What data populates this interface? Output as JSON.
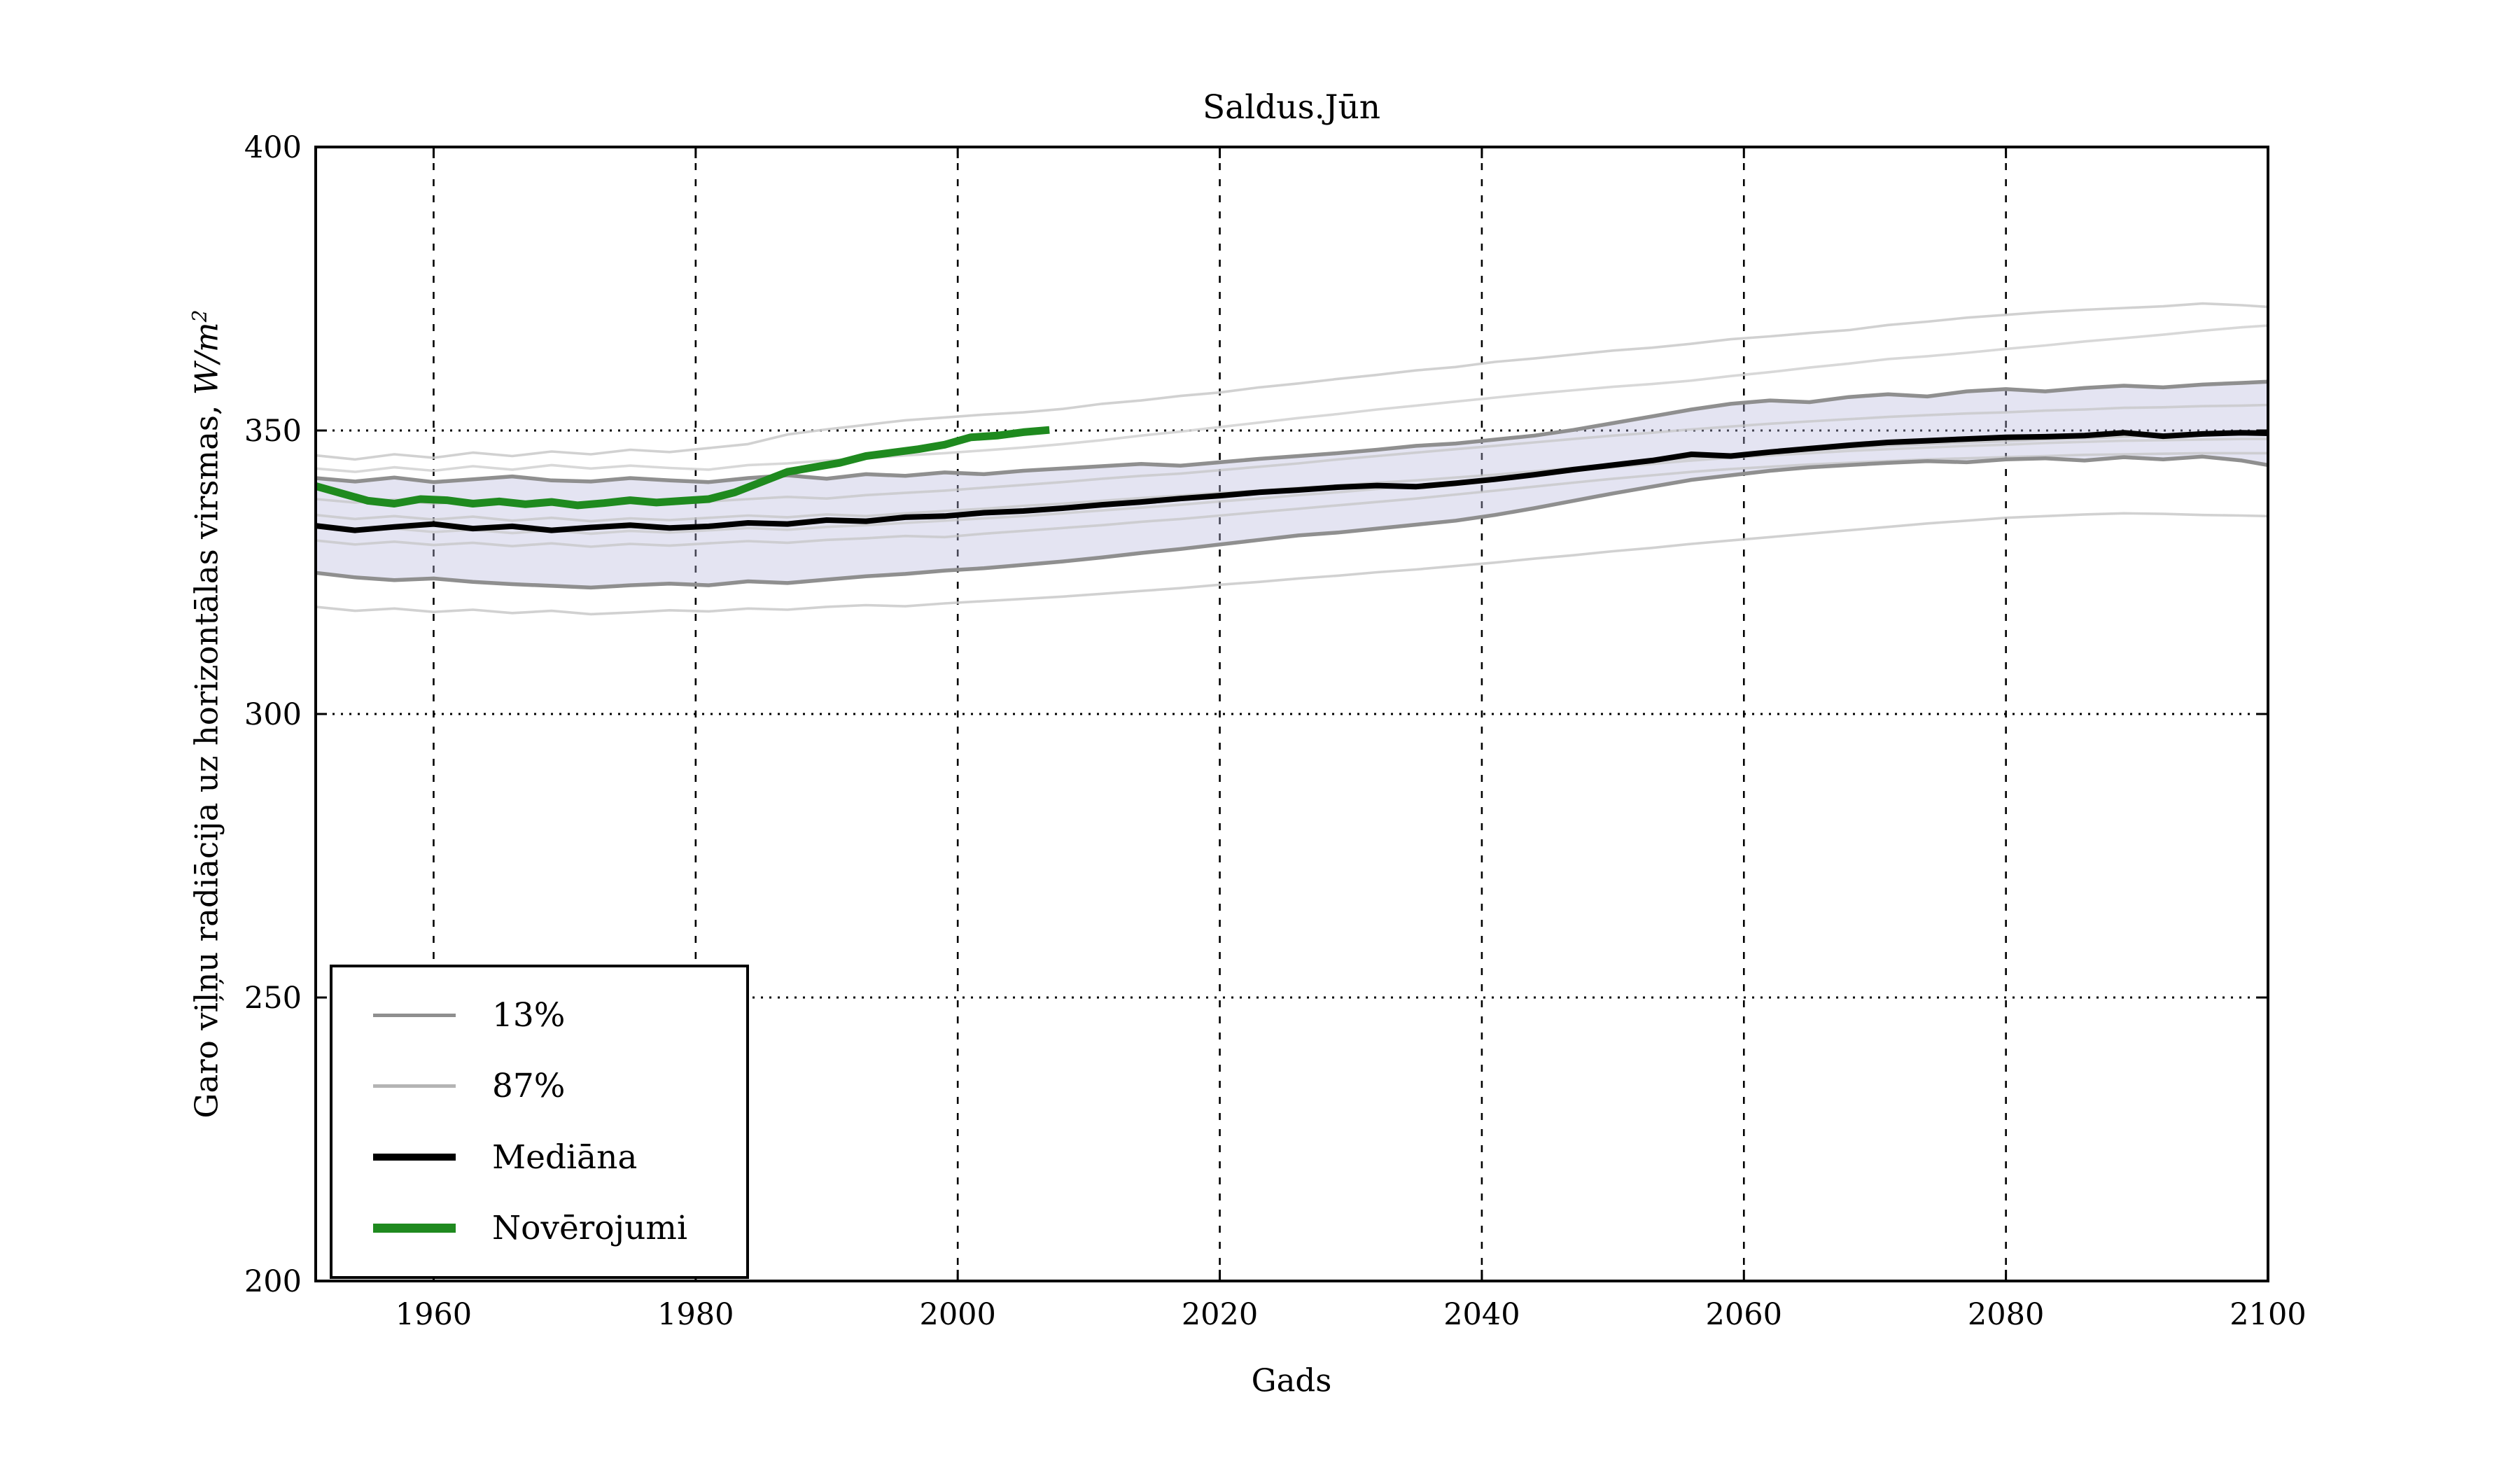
{
  "chart_data": {
    "type": "line",
    "title": "Saldus.Jūn",
    "xlabel": "Gads",
    "ylabel": "Garo viļņu radiācija uz horizontālas virsmas, W/m²",
    "ylabel_parts": {
      "prefix": "Garo viļņu radiācija uz horizontālas virsmas, ",
      "unit": "W/m",
      "exponent": "2"
    },
    "xlim": [
      1951,
      2100
    ],
    "ylim": [
      200,
      400
    ],
    "x_ticks": [
      1960,
      1980,
      2000,
      2020,
      2040,
      2060,
      2080,
      2100
    ],
    "y_ticks": [
      200,
      250,
      300,
      350,
      400
    ],
    "grid": "dotted",
    "grid_color": "#000000",
    "background": "#ffffff",
    "band_fill": "#b9b9de",
    "band_fill_opacity": 0.38,
    "legend_position": "lower left",
    "legend": [
      {
        "label": "13%",
        "color": "#8f8f8f",
        "width": 5
      },
      {
        "label": "87%",
        "color": "#b4b4b4",
        "width": 5
      },
      {
        "label": "Mediāna",
        "color": "#000000",
        "width": 10
      },
      {
        "label": "Novērojumi",
        "color": "#1f8a1f",
        "width": 13
      }
    ],
    "x_years": [
      1951,
      1954,
      1957,
      1960,
      1963,
      1966,
      1969,
      1972,
      1975,
      1978,
      1981,
      1984,
      1987,
      1990,
      1993,
      1996,
      1999,
      2002,
      2005,
      2008,
      2011,
      2014,
      2017,
      2020,
      2023,
      2026,
      2029,
      2032,
      2035,
      2038,
      2041,
      2044,
      2047,
      2050,
      2053,
      2056,
      2059,
      2062,
      2065,
      2068,
      2071,
      2074,
      2077,
      2080,
      2083,
      2086,
      2089,
      2092,
      2095,
      2098,
      2100
    ],
    "series": [
      {
        "name": "ensemble-top-1",
        "role": "ensemble",
        "color": "#cccccc",
        "width": 3.6,
        "opacity": 0.9,
        "y": [
          345.6,
          344.9,
          345.8,
          345.2,
          346.1,
          345.5,
          346.3,
          345.8,
          346.6,
          346.2,
          346.9,
          347.6,
          349.3,
          350.2,
          351.0,
          351.8,
          352.3,
          352.8,
          353.2,
          353.8,
          354.7,
          355.3,
          356.1,
          356.7,
          357.6,
          358.3,
          359.1,
          359.8,
          360.6,
          361.2,
          362.1,
          362.7,
          363.4,
          364.1,
          364.6,
          365.3,
          366.1,
          366.6,
          367.2,
          367.7,
          368.6,
          369.2,
          369.9,
          370.4,
          370.9,
          371.3,
          371.6,
          371.9,
          372.4,
          372.1,
          371.8
        ]
      },
      {
        "name": "ensemble-top-2",
        "role": "ensemble",
        "color": "#d4d4d4",
        "width": 3.6,
        "opacity": 0.9,
        "y": [
          343.3,
          342.7,
          343.5,
          342.9,
          343.7,
          343.1,
          343.9,
          343.3,
          343.8,
          343.4,
          343.1,
          343.9,
          344.2,
          344.7,
          345.1,
          345.6,
          346.0,
          346.5,
          347.0,
          347.6,
          348.3,
          349.1,
          349.8,
          350.6,
          351.4,
          352.2,
          352.9,
          353.7,
          354.4,
          355.1,
          355.8,
          356.5,
          357.1,
          357.7,
          358.2,
          358.8,
          359.6,
          360.3,
          361.1,
          361.8,
          362.6,
          363.1,
          363.7,
          364.4,
          365.0,
          365.7,
          366.3,
          366.9,
          367.6,
          368.2,
          368.5
        ]
      },
      {
        "name": "ensemble-mid-1",
        "role": "ensemble",
        "color": "#c6c6c6",
        "width": 3.6,
        "opacity": 0.75,
        "y": [
          337.9,
          337.3,
          337.8,
          337.1,
          337.6,
          336.9,
          337.4,
          336.8,
          337.3,
          337.0,
          337.5,
          337.9,
          338.3,
          338.0,
          338.6,
          339.0,
          339.4,
          339.9,
          340.4,
          340.9,
          341.5,
          342.0,
          342.4,
          343.0,
          343.6,
          344.2,
          344.9,
          345.5,
          346.1,
          346.7,
          347.3,
          347.9,
          348.5,
          349.1,
          349.6,
          350.2,
          350.7,
          351.2,
          351.6,
          352.0,
          352.4,
          352.7,
          353.0,
          353.2,
          353.5,
          353.7,
          354.0,
          354.1,
          354.3,
          354.4,
          354.5
        ]
      },
      {
        "name": "ensemble-mid-2",
        "role": "ensemble",
        "color": "#c6c6c6",
        "width": 3.6,
        "opacity": 0.75,
        "y": [
          335.1,
          334.4,
          334.9,
          334.3,
          334.8,
          334.1,
          334.6,
          334.0,
          334.5,
          334.2,
          334.6,
          335.0,
          334.7,
          335.2,
          334.9,
          335.4,
          335.8,
          336.2,
          336.7,
          337.1,
          337.6,
          338.1,
          338.5,
          339.0,
          339.4,
          339.9,
          340.3,
          340.8,
          341.2,
          341.7,
          342.2,
          342.8,
          343.4,
          344.0,
          344.6,
          345.2,
          345.7,
          346.1,
          346.5,
          346.9,
          347.3,
          347.6,
          347.9,
          348.1,
          348.4,
          348.6,
          348.9,
          349.1,
          349.4,
          349.6,
          349.7
        ]
      },
      {
        "name": "ensemble-mid-3",
        "role": "ensemble",
        "color": "#c9c9c9",
        "width": 3.6,
        "opacity": 0.75,
        "y": [
          332.9,
          332.2,
          332.7,
          332.1,
          332.5,
          331.9,
          332.4,
          331.8,
          332.3,
          332.0,
          332.4,
          332.8,
          332.5,
          333.0,
          333.3,
          333.7,
          334.1,
          334.5,
          334.9,
          335.4,
          335.9,
          336.4,
          336.9,
          337.5,
          338.0,
          338.6,
          339.1,
          339.7,
          340.3,
          340.9,
          341.6,
          342.2,
          342.9,
          343.5,
          344.1,
          344.7,
          345.2,
          345.6,
          346.0,
          346.4,
          346.7,
          347.0,
          347.3,
          347.5,
          347.8,
          348.0,
          348.2,
          348.3,
          348.4,
          348.5,
          348.5
        ]
      },
      {
        "name": "ensemble-mid-4",
        "role": "ensemble",
        "color": "#c6c6c6",
        "width": 3.6,
        "opacity": 0.75,
        "y": [
          330.6,
          329.9,
          330.4,
          329.8,
          330.2,
          329.6,
          330.1,
          329.5,
          330.0,
          329.7,
          330.1,
          330.5,
          330.2,
          330.7,
          331.0,
          331.4,
          331.2,
          331.8,
          332.3,
          332.8,
          333.3,
          333.9,
          334.4,
          335.0,
          335.6,
          336.2,
          336.8,
          337.4,
          338.0,
          338.7,
          339.4,
          340.1,
          340.8,
          341.5,
          342.1,
          342.7,
          343.2,
          343.6,
          344.0,
          344.3,
          344.6,
          344.9,
          345.1,
          345.3,
          345.5,
          345.7,
          345.8,
          345.9,
          346.0,
          346.0,
          346.0
        ]
      },
      {
        "name": "ensemble-bottom",
        "role": "ensemble",
        "color": "#cccccc",
        "width": 3.6,
        "opacity": 0.9,
        "y": [
          318.9,
          318.2,
          318.6,
          318.0,
          318.4,
          317.8,
          318.2,
          317.6,
          317.9,
          318.3,
          318.1,
          318.6,
          318.4,
          318.9,
          319.2,
          319.0,
          319.5,
          319.9,
          320.3,
          320.7,
          321.2,
          321.7,
          322.2,
          322.8,
          323.3,
          323.9,
          324.4,
          325.0,
          325.5,
          326.1,
          326.7,
          327.4,
          328.0,
          328.7,
          329.3,
          330.0,
          330.6,
          331.2,
          331.8,
          332.4,
          333.0,
          333.6,
          334.1,
          334.6,
          334.9,
          335.2,
          335.4,
          335.3,
          335.1,
          335.0,
          334.9
        ]
      },
      {
        "name": "percentile-13",
        "role": "band_lower",
        "color": "#8f8f8f",
        "width": 5.5,
        "opacity": 1,
        "y": [
          324.9,
          324.1,
          323.6,
          323.9,
          323.3,
          322.9,
          322.6,
          322.3,
          322.7,
          323.0,
          322.7,
          323.4,
          323.1,
          323.7,
          324.3,
          324.7,
          325.3,
          325.7,
          326.3,
          326.9,
          327.6,
          328.4,
          329.1,
          329.9,
          330.7,
          331.5,
          332.0,
          332.7,
          333.4,
          334.1,
          335.1,
          336.3,
          337.6,
          338.9,
          340.1,
          341.3,
          342.1,
          342.9,
          343.5,
          343.9,
          344.3,
          344.6,
          344.4,
          344.9,
          345.1,
          344.7,
          345.3,
          344.9,
          345.4,
          344.7,
          343.9
        ]
      },
      {
        "name": "percentile-87",
        "role": "band_upper",
        "color": "#8f8f8f",
        "width": 5.5,
        "opacity": 1,
        "y": [
          341.6,
          341.0,
          341.7,
          340.9,
          341.4,
          341.9,
          341.2,
          341.0,
          341.6,
          341.2,
          340.9,
          341.6,
          342.1,
          341.5,
          342.3,
          342.0,
          342.6,
          342.3,
          342.9,
          343.3,
          343.7,
          344.1,
          343.8,
          344.4,
          345.0,
          345.5,
          346.0,
          346.6,
          347.3,
          347.7,
          348.4,
          349.1,
          350.1,
          351.3,
          352.5,
          353.7,
          354.7,
          355.3,
          355.0,
          355.9,
          356.4,
          356.0,
          356.9,
          357.3,
          356.9,
          357.5,
          357.9,
          357.6,
          358.1,
          358.4,
          358.6
        ]
      },
      {
        "name": "mediana",
        "role": "median",
        "color": "#000000",
        "width": 8,
        "opacity": 1,
        "y": [
          333.2,
          332.4,
          333.0,
          333.5,
          332.7,
          333.1,
          332.4,
          332.9,
          333.3,
          332.8,
          333.1,
          333.7,
          333.5,
          334.2,
          334.0,
          334.7,
          334.9,
          335.5,
          335.8,
          336.3,
          336.9,
          337.4,
          338.0,
          338.5,
          339.1,
          339.5,
          340.0,
          340.3,
          340.1,
          340.7,
          341.4,
          342.2,
          343.1,
          343.9,
          344.7,
          345.8,
          345.5,
          346.2,
          346.8,
          347.4,
          347.9,
          348.2,
          348.5,
          348.8,
          348.9,
          349.1,
          349.6,
          349.0,
          349.4,
          349.6,
          349.5
        ]
      },
      {
        "name": "noverojumi",
        "role": "observations",
        "color": "#1f8a1f",
        "width": 11,
        "opacity": 1,
        "x": [
          1951,
          1953,
          1955,
          1957,
          1959,
          1961,
          1963,
          1965,
          1967,
          1969,
          1971,
          1973,
          1975,
          1977,
          1979,
          1981,
          1983,
          1985,
          1987,
          1989,
          1991,
          1993,
          1995,
          1997,
          1999,
          2001,
          2003,
          2005,
          2007
        ],
        "y": [
          340.2,
          338.9,
          337.6,
          337.1,
          337.9,
          337.7,
          337.1,
          337.5,
          337.0,
          337.4,
          336.8,
          337.2,
          337.7,
          337.3,
          337.6,
          337.9,
          339.1,
          340.9,
          342.7,
          343.5,
          344.3,
          345.5,
          346.1,
          346.7,
          347.5,
          348.8,
          349.1,
          349.7,
          350.1
        ]
      }
    ]
  }
}
